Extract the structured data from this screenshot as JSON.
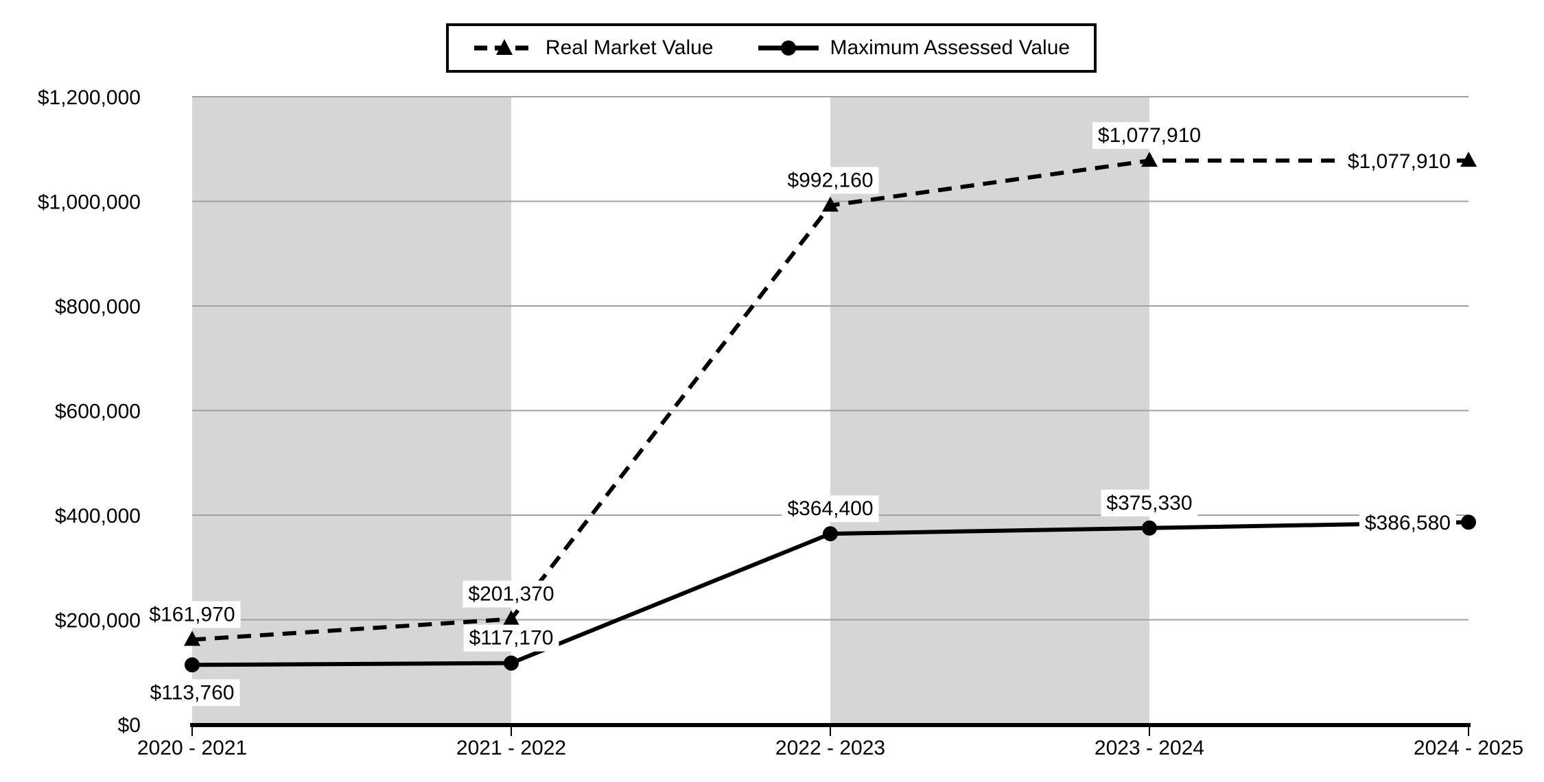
{
  "chart_data": {
    "type": "line",
    "categories": [
      "2020 - 2021",
      "2021 - 2022",
      "2022 - 2023",
      "2023 - 2024",
      "2024 - 2025"
    ],
    "series": [
      {
        "name": "Real Market Value",
        "values": [
          161970,
          201370,
          992160,
          1077910,
          1077910
        ],
        "labels": [
          "$161,970",
          "$201,370",
          "$992,160",
          "$1,077,910",
          "$1,077,910"
        ],
        "label_positions": [
          "above",
          "above",
          "above",
          "above",
          "left"
        ],
        "line_style": "dashed",
        "marker": "triangle",
        "color": "#000000"
      },
      {
        "name": "Maximum Assessed Value",
        "values": [
          113760,
          117170,
          364400,
          375330,
          386580
        ],
        "labels": [
          "$113,760",
          "$117,170",
          "$364,400",
          "$375,330",
          "$386,580"
        ],
        "label_positions": [
          "below",
          "above",
          "above",
          "above",
          "left"
        ],
        "line_style": "solid",
        "marker": "circle",
        "color": "#000000"
      }
    ],
    "y_axis": {
      "min": 0,
      "max": 1200000,
      "tick_interval": 200000,
      "tick_labels": [
        "$0",
        "$200,000",
        "$400,000",
        "$600,000",
        "$800,000",
        "$1,000,000",
        "$1,200,000"
      ]
    },
    "x_axis": {
      "tick_labels": [
        "2020 - 2021",
        "2021 - 2022",
        "2022 - 2023",
        "2023 - 2024",
        "2024 - 2025"
      ]
    },
    "legend": {
      "position": "top",
      "entries": [
        "Real Market Value",
        "Maximum Assessed Value"
      ]
    },
    "style": {
      "band_color": "#d6d6d6",
      "gridline_color": "#a0a0a0",
      "axis_color": "#000000",
      "label_bg_color": "#ffffff",
      "text_color": "#000000",
      "alternating_bands": true,
      "grid": "horizontal"
    }
  }
}
